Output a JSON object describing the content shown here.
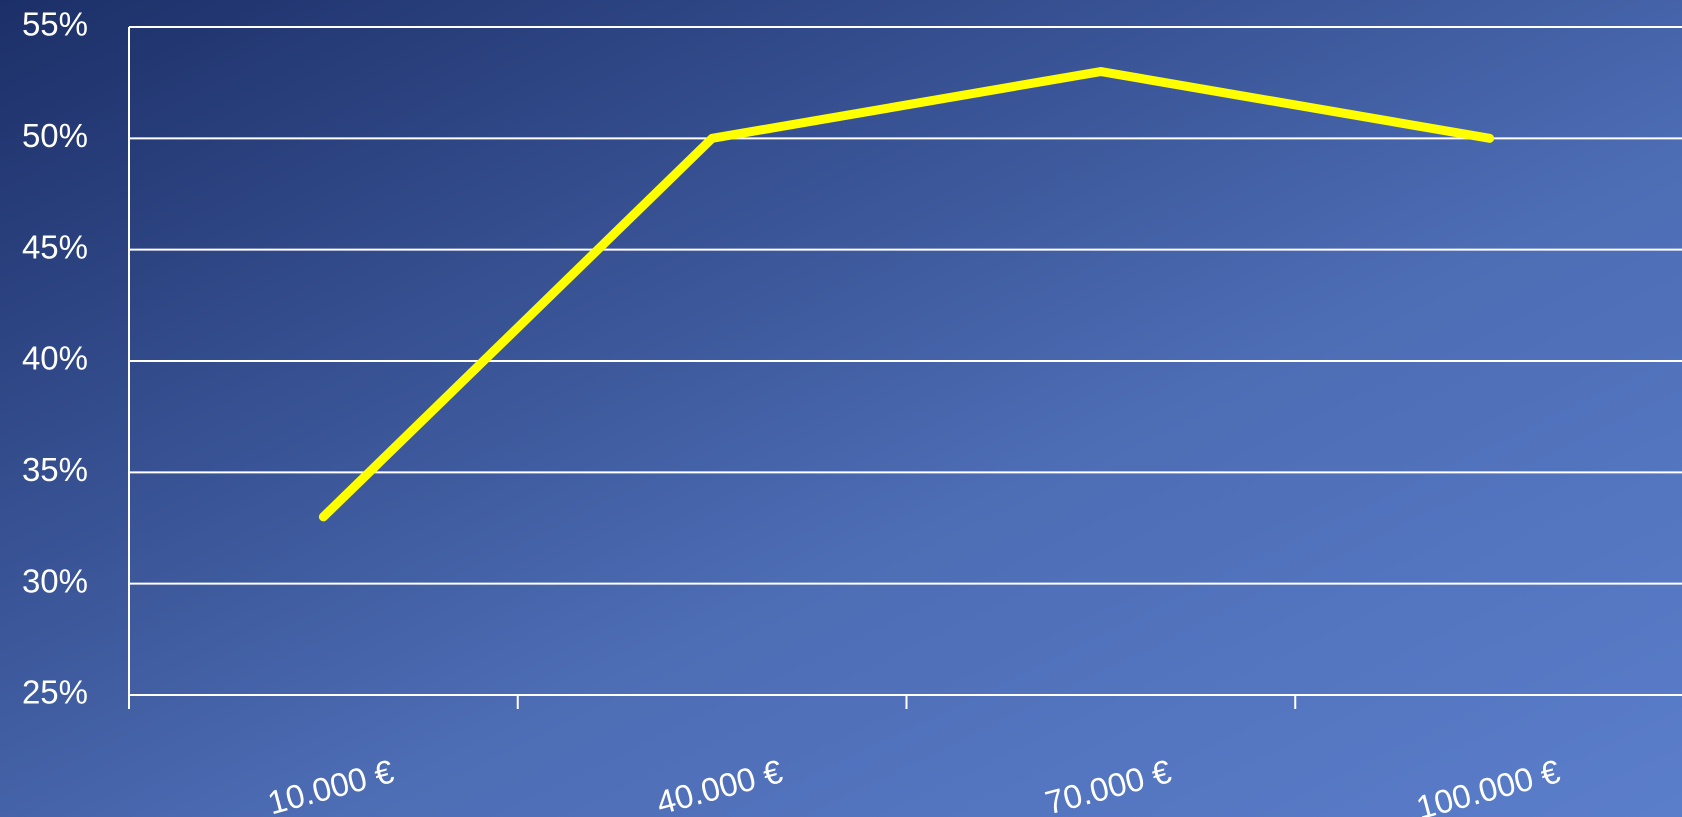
{
  "chart_data": {
    "type": "line",
    "categories": [
      "10.000 €",
      "40.000 €",
      "70.000 €",
      "100.000 €"
    ],
    "series": [
      {
        "color": "#ffff00",
        "values": [
          33,
          50,
          53,
          50
        ]
      }
    ],
    "ylim": [
      25,
      55
    ],
    "yticks": [
      {
        "value": 25,
        "label": "25%"
      },
      {
        "value": 30,
        "label": "30%"
      },
      {
        "value": 35,
        "label": "35%"
      },
      {
        "value": 40,
        "label": "40%"
      },
      {
        "value": 45,
        "label": "45%"
      },
      {
        "value": 50,
        "label": "50%"
      },
      {
        "value": 55,
        "label": "55%"
      }
    ],
    "grid": true
  }
}
